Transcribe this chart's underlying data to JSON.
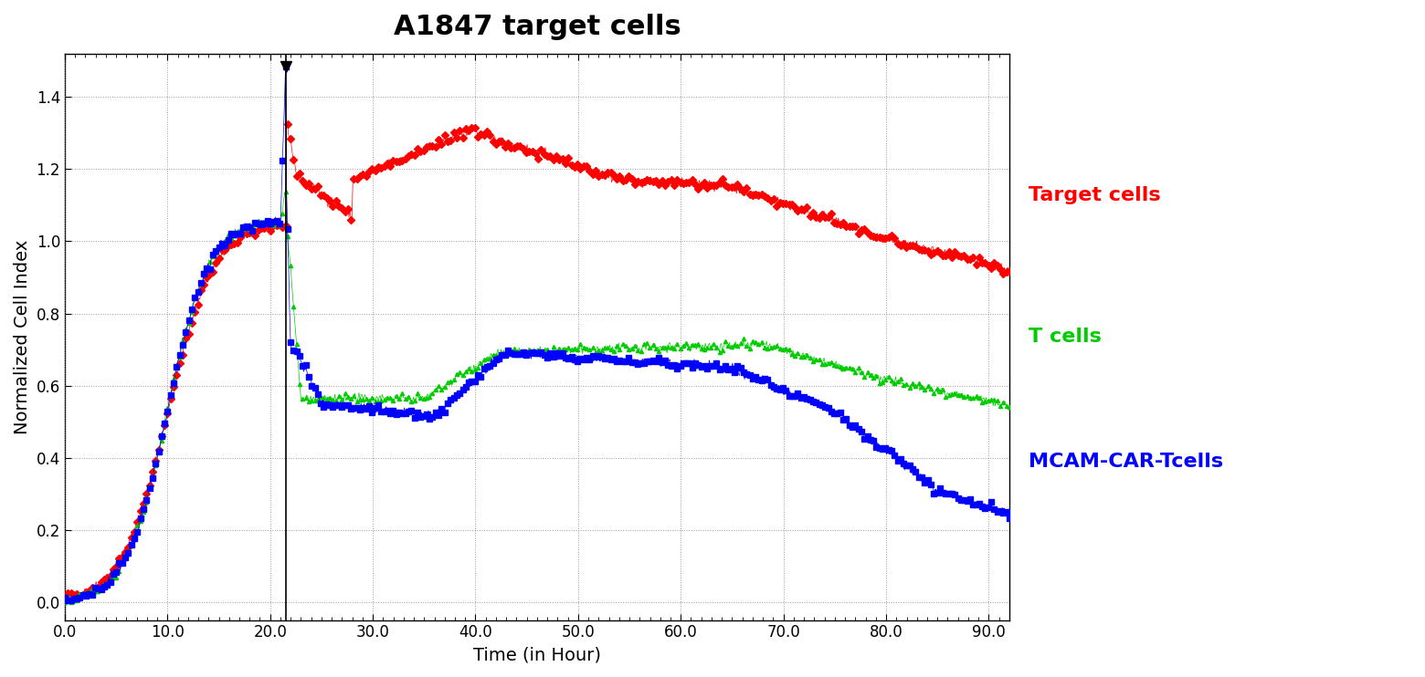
{
  "title": "A1847 target cells",
  "xlabel": "Time (in Hour)",
  "ylabel": "Normalized Cell Index",
  "xlim": [
    0.0,
    92.0
  ],
  "ylim": [
    -0.05,
    1.5
  ],
  "yticks": [
    0.0,
    0.2,
    0.4,
    0.6,
    0.8,
    1.0,
    1.2,
    1.4
  ],
  "xticks": [
    0.0,
    10.0,
    20.0,
    30.0,
    40.0,
    50.0,
    60.0,
    70.0,
    80.0,
    90.0
  ],
  "vline_x": 21.5,
  "legend_labels": [
    "Target cells",
    "T cells",
    "MCAM-CAR-Tcells"
  ],
  "background_color": "#FFFFFF",
  "plot_bg_color": "#FFFFFF",
  "title_fontsize": 22,
  "axis_label_fontsize": 14,
  "tick_fontsize": 12,
  "legend_fontsize": 16,
  "red_color": "#FF0000",
  "green_color": "#00CC00",
  "blue_color": "#0000FF",
  "marker_size_red": 4,
  "marker_size_green": 3,
  "marker_size_blue": 5
}
